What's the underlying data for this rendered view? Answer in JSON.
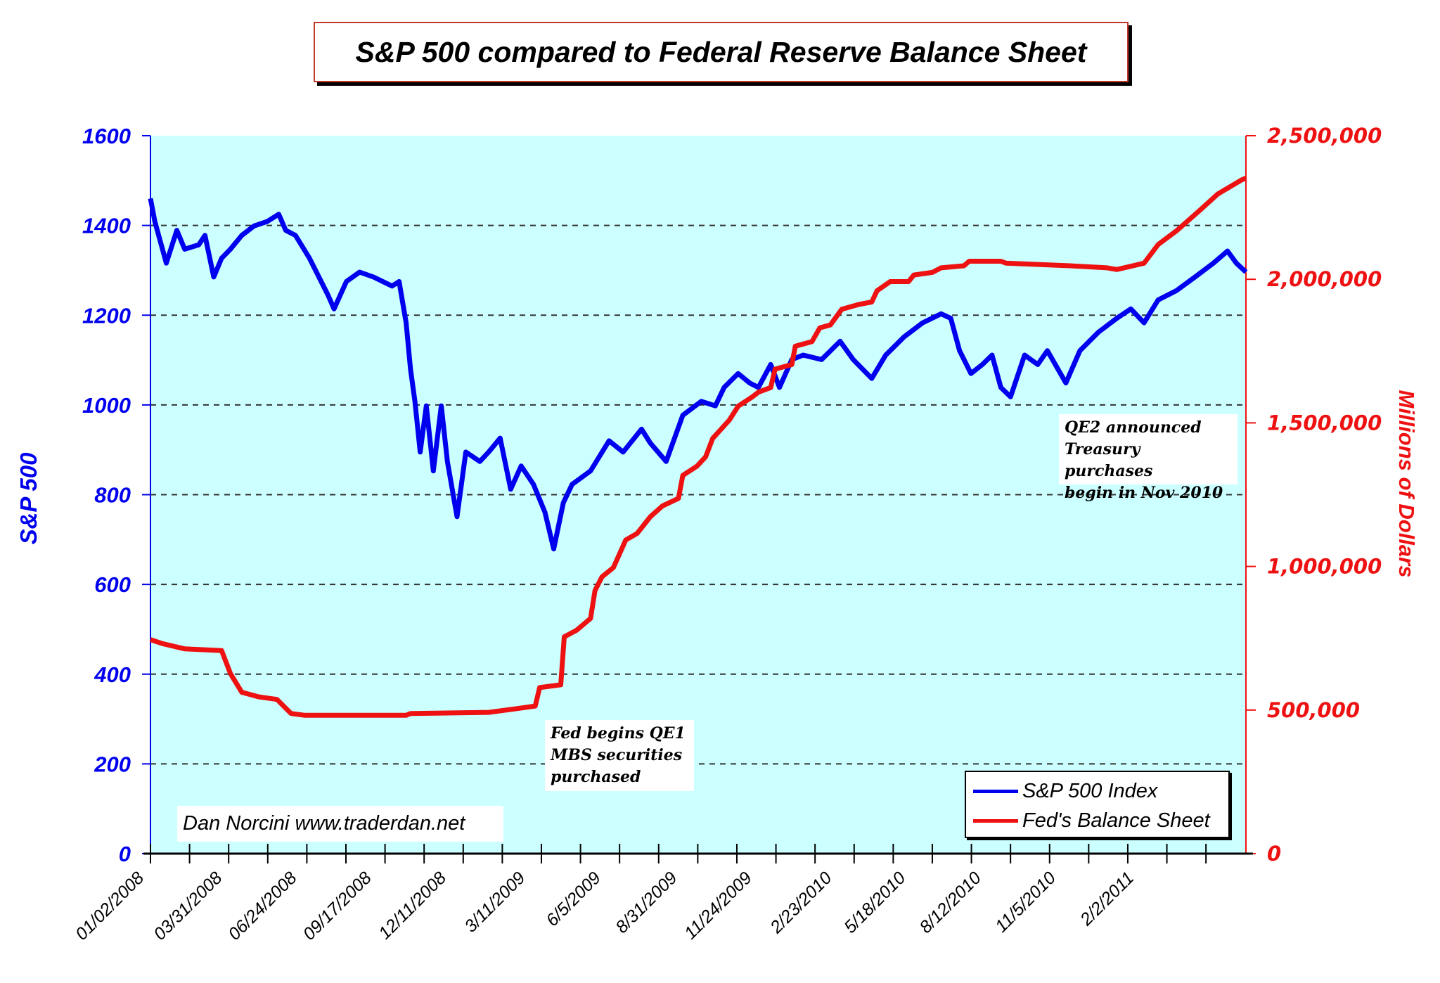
{
  "title": "S&P 500 compared to Federal Reserve Balance Sheet",
  "credit": "Dan Norcini www.traderdan.net",
  "annotations": {
    "qe1": [
      "Fed begins QE1",
      "MBS securities",
      "purchased"
    ],
    "qe2": [
      "QE2 announced",
      "Treasury purchases",
      "begin in Nov 2010"
    ]
  },
  "colors": {
    "plot_bg": "#ccffff",
    "sp500": "#0000ee",
    "fed": "#ee1111",
    "grid": "#333333"
  },
  "chart_data": {
    "type": "line",
    "title": "S&P 500 compared to Federal Reserve Balance Sheet",
    "ylabel": "S&P 500",
    "y2label": "Millions of Dollars",
    "ylim": [
      0,
      1600
    ],
    "y2lim": [
      0,
      2500000
    ],
    "yticks": [
      "0",
      "200",
      "400",
      "600",
      "800",
      "1000",
      "1200",
      "1400",
      "1600"
    ],
    "y2ticks": [
      "0",
      "500,000",
      "1,000,000",
      "1,500,000",
      "2,000,000",
      "2,500,000"
    ],
    "xlim": [
      "2008-01-02",
      "2011-06-02"
    ],
    "xtick_labels": [
      "01/02/2008",
      "03/31/2008",
      "06/24/2008",
      "09/17/2008",
      "12/11/2008",
      "3/11/2009",
      "6/5/2009",
      "8/31/2009",
      "11/24/2009",
      "2/23/2010",
      "5/18/2010",
      "8/12/2010",
      "11/5/2010",
      "2/2/2011"
    ],
    "grid": "horizontal dashed",
    "legend_position": "bottom-right",
    "series": [
      {
        "name": "S&P 500 Index",
        "axis": "left",
        "color": "#0000ee",
        "x": [
          "2008-01-02",
          "2008-01-07",
          "2008-01-20",
          "2008-02-01",
          "2008-02-10",
          "2008-02-26",
          "2008-03-04",
          "2008-03-14",
          "2008-03-23",
          "2008-04-02",
          "2008-04-15",
          "2008-04-29",
          "2008-05-14",
          "2008-05-27",
          "2008-06-04",
          "2008-06-15",
          "2008-07-01",
          "2008-07-22",
          "2008-07-29",
          "2008-08-12",
          "2008-08-27",
          "2008-09-12",
          "2008-10-03",
          "2008-10-11",
          "2008-10-19",
          "2008-10-24",
          "2008-10-29",
          "2008-11-04",
          "2008-11-11",
          "2008-11-19",
          "2008-11-28",
          "2008-12-05",
          "2008-12-16",
          "2008-12-26",
          "2009-01-11",
          "2009-01-21",
          "2009-02-03",
          "2009-02-15",
          "2009-02-27",
          "2009-03-13",
          "2009-03-26",
          "2009-04-05",
          "2009-04-16",
          "2009-04-26",
          "2009-05-17",
          "2009-06-07",
          "2009-06-23",
          "2009-07-14",
          "2009-07-24",
          "2009-08-11",
          "2009-08-30",
          "2009-09-20",
          "2009-10-06",
          "2009-10-16",
          "2009-11-01",
          "2009-11-14",
          "2009-11-24",
          "2009-12-08",
          "2009-12-18",
          "2010-01-01",
          "2010-01-14",
          "2010-02-04",
          "2010-02-25",
          "2010-03-12",
          "2010-04-02",
          "2010-04-18",
          "2010-05-09",
          "2010-05-30",
          "2010-06-20",
          "2010-07-01",
          "2010-07-11",
          "2010-07-24",
          "2010-08-06",
          "2010-08-17",
          "2010-08-27",
          "2010-09-07",
          "2010-09-23",
          "2010-10-08",
          "2010-10-19",
          "2010-11-09",
          "2010-11-25",
          "2010-12-16",
          "2011-01-06",
          "2011-01-22",
          "2011-02-06",
          "2011-02-22",
          "2011-03-15",
          "2011-04-05",
          "2011-04-26",
          "2011-05-12",
          "2011-05-22",
          "2011-06-02"
        ],
        "values": [
          1460,
          1409,
          1316,
          1389,
          1347,
          1357,
          1378,
          1285,
          1327,
          1347,
          1378,
          1399,
          1409,
          1425,
          1389,
          1378,
          1327,
          1245,
          1214,
          1275,
          1296,
          1285,
          1265,
          1275,
          1183,
          1080,
          1008,
          895,
          998,
          853,
          998,
          874,
          751,
          895,
          874,
          895,
          926,
          812,
          864,
          823,
          761,
          679,
          782,
          823,
          853,
          920,
          895,
          946,
          915,
          874,
          977,
          1008,
          998,
          1039,
          1070,
          1049,
          1039,
          1090,
          1039,
          1101,
          1111,
          1101,
          1142,
          1101,
          1059,
          1111,
          1152,
          1183,
          1203,
          1193,
          1121,
          1070,
          1090,
          1111,
          1039,
          1018,
          1111,
          1090,
          1121,
          1049,
          1121,
          1162,
          1193,
          1214,
          1183,
          1234,
          1255,
          1285,
          1316,
          1343,
          1316,
          1296
        ]
      },
      {
        "name": "Fed's Balance Sheet",
        "axis": "right",
        "color": "#ee1111",
        "x": [
          "2008-01-02",
          "2008-01-15",
          "2008-02-10",
          "2008-03-23",
          "2008-04-02",
          "2008-04-15",
          "2008-05-04",
          "2008-05-25",
          "2008-06-10",
          "2008-06-25",
          "2008-10-19",
          "2008-10-24",
          "2009-01-21",
          "2009-02-22",
          "2009-03-15",
          "2009-03-20",
          "2009-04-13",
          "2009-04-17",
          "2009-05-01",
          "2009-05-17",
          "2009-05-22",
          "2009-05-30",
          "2009-06-12",
          "2009-06-26",
          "2009-07-09",
          "2009-07-24",
          "2009-08-07",
          "2009-08-25",
          "2009-08-30",
          "2009-09-15",
          "2009-09-25",
          "2009-10-03",
          "2009-10-22",
          "2009-11-01",
          "2009-11-17",
          "2009-11-24",
          "2009-12-08",
          "2009-12-13",
          "2010-01-01",
          "2010-01-05",
          "2010-01-24",
          "2010-02-02",
          "2010-02-14",
          "2010-02-27",
          "2010-03-18",
          "2010-04-02",
          "2010-04-08",
          "2010-04-23",
          "2010-05-14",
          "2010-05-20",
          "2010-06-10",
          "2010-06-20",
          "2010-07-16",
          "2010-07-22",
          "2010-08-27",
          "2010-09-02",
          "2010-11-14",
          "2010-12-26",
          "2011-01-06",
          "2011-02-06",
          "2011-02-22",
          "2011-03-15",
          "2011-04-10",
          "2011-05-01",
          "2011-05-28",
          "2011-06-02"
        ],
        "values": [
          745000,
          732000,
          713000,
          707000,
          627000,
          562000,
          546000,
          537000,
          488000,
          482000,
          482000,
          488000,
          492000,
          505000,
          514000,
          578000,
          588000,
          755000,
          778000,
          819000,
          916000,
          964000,
          996000,
          1092000,
          1115000,
          1173000,
          1211000,
          1237000,
          1317000,
          1349000,
          1382000,
          1446000,
          1510000,
          1558000,
          1590000,
          1607000,
          1623000,
          1687000,
          1703000,
          1767000,
          1783000,
          1831000,
          1841000,
          1896000,
          1912000,
          1921000,
          1960000,
          1992000,
          1992000,
          2015000,
          2024000,
          2040000,
          2047000,
          2063000,
          2063000,
          2056000,
          2047000,
          2040000,
          2034000,
          2056000,
          2121000,
          2169000,
          2239000,
          2297000,
          2346000,
          2352000
        ]
      }
    ]
  }
}
